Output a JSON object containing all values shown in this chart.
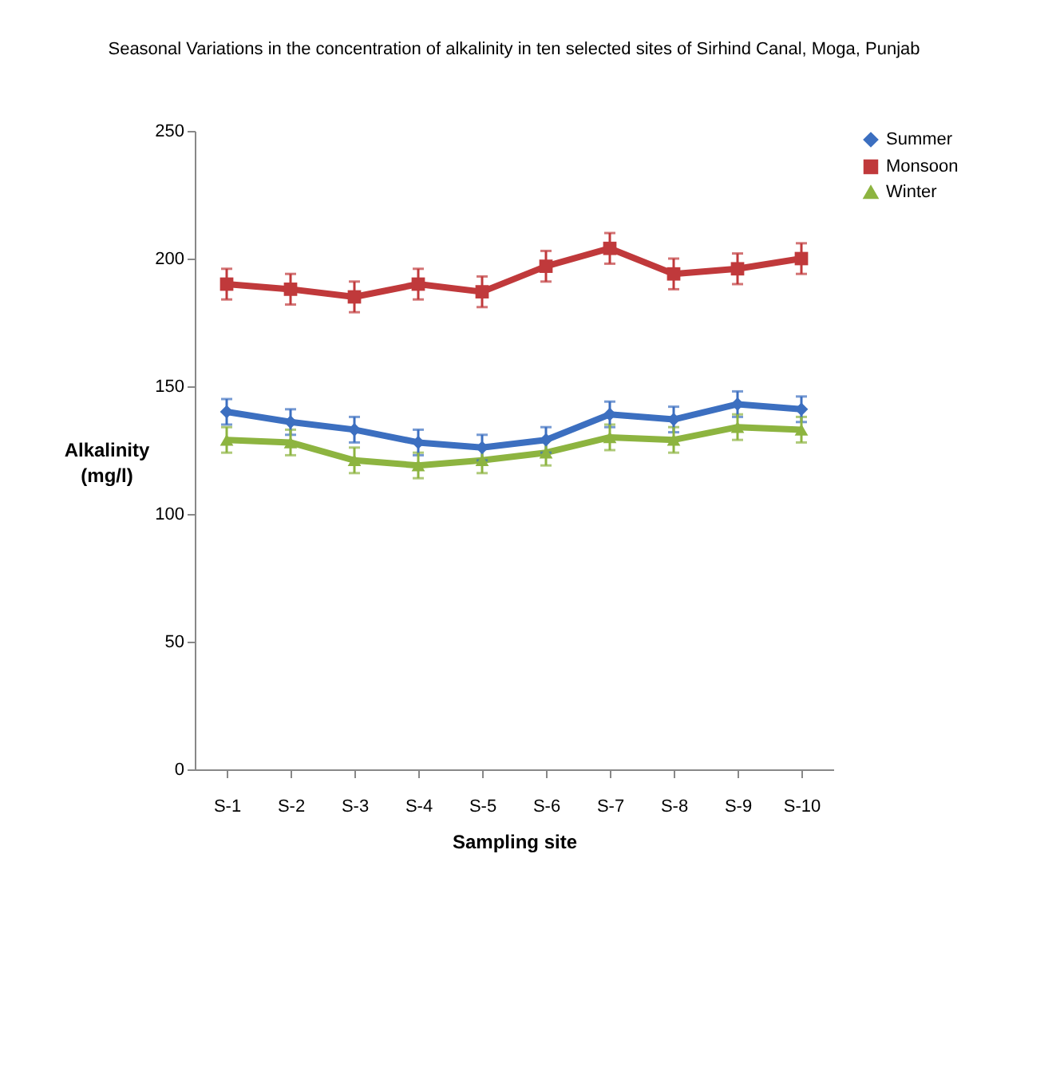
{
  "chart_data": {
    "type": "line",
    "title": "Seasonal Variations in the concentration of alkalinity in ten selected sites of Sirhind Canal, Moga, Punjab",
    "xlabel": "Sampling site",
    "ylabel": "Alkalinity (mg/l)",
    "categories": [
      "S-1",
      "S-2",
      "S-3",
      "S-4",
      "S-5",
      "S-6",
      "S-7",
      "S-8",
      "S-9",
      "S-10"
    ],
    "series": [
      {
        "name": "Summer",
        "color": "#3c6fc0",
        "marker": "diamond",
        "values": [
          140,
          136,
          133,
          128,
          126,
          129,
          139,
          137,
          143,
          141
        ],
        "errors": [
          5,
          5,
          5,
          5,
          5,
          5,
          5,
          5,
          5,
          5
        ]
      },
      {
        "name": "Monsoon",
        "color": "#c0393b",
        "marker": "square",
        "values": [
          190,
          188,
          185,
          190,
          187,
          197,
          204,
          194,
          196,
          200
        ],
        "errors": [
          6,
          6,
          6,
          6,
          6,
          6,
          6,
          6,
          6,
          6
        ]
      },
      {
        "name": "Winter",
        "color": "#8db440",
        "marker": "triangle",
        "values": [
          129,
          128,
          121,
          119,
          121,
          124,
          130,
          129,
          134,
          133
        ],
        "errors": [
          5,
          5,
          5,
          5,
          5,
          5,
          5,
          5,
          5,
          5
        ]
      }
    ],
    "ylim": [
      0,
      250
    ],
    "yticks": [
      0,
      50,
      100,
      150,
      200,
      250
    ],
    "grid": false,
    "legend": "right",
    "line_style": "solid"
  }
}
